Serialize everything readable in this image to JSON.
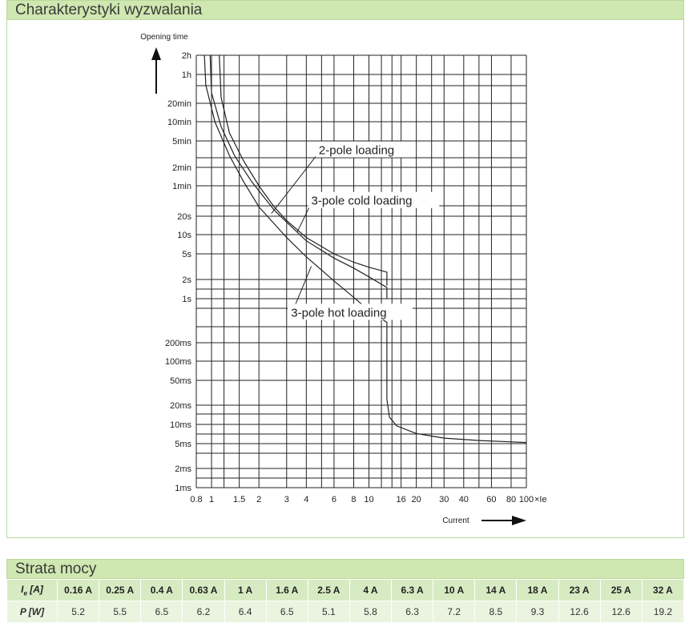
{
  "header1": {
    "title": "Charakterystyki wyzwalania"
  },
  "header2": {
    "title": "Strata mocy"
  },
  "chart_data": {
    "type": "line",
    "title": "",
    "xlabel": "Current",
    "ylabel": "Opening time",
    "x_unit": "×Ie",
    "x_scale": "log",
    "y_scale": "log",
    "xlim": [
      0.8,
      100
    ],
    "ylim_seconds": [
      0.001,
      7200
    ],
    "x_ticks": [
      {
        "v": 0.8,
        "label": "0.8"
      },
      {
        "v": 1,
        "label": "1"
      },
      {
        "v": 1.5,
        "label": "1.5"
      },
      {
        "v": 2,
        "label": "2"
      },
      {
        "v": 3,
        "label": "3"
      },
      {
        "v": 4,
        "label": "4"
      },
      {
        "v": 6,
        "label": "6"
      },
      {
        "v": 8,
        "label": "8"
      },
      {
        "v": 10,
        "label": "10"
      },
      {
        "v": 16,
        "label": "16"
      },
      {
        "v": 20,
        "label": "20"
      },
      {
        "v": 30,
        "label": "30"
      },
      {
        "v": 40,
        "label": "40"
      },
      {
        "v": 60,
        "label": "60"
      },
      {
        "v": 80,
        "label": "80"
      },
      {
        "v": 100,
        "label": "100"
      }
    ],
    "x_grid": [
      0.8,
      1,
      1.2,
      1.5,
      2,
      3,
      4,
      5,
      6,
      8,
      10,
      12,
      14,
      16,
      20,
      25,
      30,
      40,
      50,
      60,
      80,
      100
    ],
    "y_ticks": [
      {
        "s": 7200,
        "label": "2h"
      },
      {
        "s": 3600,
        "label": "1h"
      },
      {
        "s": 1200,
        "label": "20min"
      },
      {
        "s": 600,
        "label": "10min"
      },
      {
        "s": 300,
        "label": "5min"
      },
      {
        "s": 120,
        "label": "2min"
      },
      {
        "s": 60,
        "label": "1min"
      },
      {
        "s": 20,
        "label": "20s"
      },
      {
        "s": 10,
        "label": "10s"
      },
      {
        "s": 5,
        "label": "5s"
      },
      {
        "s": 2,
        "label": "2s"
      },
      {
        "s": 1,
        "label": "1s"
      },
      {
        "s": 0.2,
        "label": "200ms"
      },
      {
        "s": 0.1,
        "label": "100ms"
      },
      {
        "s": 0.05,
        "label": "50ms"
      },
      {
        "s": 0.02,
        "label": "20ms"
      },
      {
        "s": 0.01,
        "label": "10ms"
      },
      {
        "s": 0.005,
        "label": "5ms"
      },
      {
        "s": 0.002,
        "label": "2ms"
      },
      {
        "s": 0.001,
        "label": "1ms"
      }
    ],
    "series": [
      {
        "name": "2-pole loading",
        "points": [
          [
            1.12,
            7200
          ],
          [
            1.15,
            1500
          ],
          [
            1.3,
            400
          ],
          [
            1.6,
            150
          ],
          [
            2,
            60
          ],
          [
            2.5,
            28
          ],
          [
            3,
            17
          ],
          [
            4,
            9
          ],
          [
            6,
            5
          ],
          [
            8,
            3.7
          ],
          [
            10,
            3.1
          ],
          [
            13,
            2.6
          ],
          [
            13,
            1.6
          ]
        ]
      },
      {
        "name": "3-pole cold loading",
        "points": [
          [
            0.98,
            7200
          ],
          [
            1.0,
            1800
          ],
          [
            1.15,
            500
          ],
          [
            1.4,
            180
          ],
          [
            1.8,
            70
          ],
          [
            2.5,
            25
          ],
          [
            3,
            16
          ],
          [
            4,
            8
          ],
          [
            6,
            4.3
          ],
          [
            8,
            3
          ],
          [
            10,
            2.2
          ],
          [
            13,
            1.5
          ],
          [
            13,
            1.0
          ]
        ]
      },
      {
        "name": "3-pole hot loading",
        "points": [
          [
            0.9,
            7200
          ],
          [
            0.92,
            2400
          ],
          [
            1.05,
            600
          ],
          [
            1.3,
            180
          ],
          [
            1.6,
            70
          ],
          [
            2,
            28
          ],
          [
            3,
            9
          ],
          [
            4,
            4.5
          ],
          [
            6,
            1.9
          ],
          [
            8,
            1.05
          ],
          [
            10,
            0.65
          ],
          [
            13,
            0.42
          ],
          [
            13,
            0.025
          ],
          [
            13.5,
            0.013
          ],
          [
            15,
            0.0095
          ],
          [
            20,
            0.0072
          ],
          [
            30,
            0.0061
          ],
          [
            50,
            0.0056
          ],
          [
            100,
            0.0052
          ]
        ]
      }
    ],
    "annotations": [
      {
        "text": "2-pole loading",
        "anchor_x": 2.4,
        "anchor_y": 22,
        "text_x": 4.8,
        "text_y": 200
      },
      {
        "text": "3-pole cold loading",
        "anchor_x": 3.5,
        "anchor_y": 11,
        "text_x": 4.3,
        "text_y": 32
      },
      {
        "text": "3-pole hot loading",
        "anchor_x": 4.3,
        "anchor_y": 3.2,
        "text_x": 3.2,
        "text_y": 0.55
      }
    ]
  },
  "table": {
    "row1": {
      "label": "Iₑ [A]",
      "label_main": "I",
      "label_sub": "e",
      "label_unit": " [A]",
      "values": [
        "0.16 A",
        "0.25 A",
        "0.4 A",
        "0.63 A",
        "1 A",
        "1.6 A",
        "2.5 A",
        "4 A",
        "6.3 A",
        "10 A",
        "14 A",
        "18 A",
        "23 A",
        "25 A",
        "32 A"
      ]
    },
    "row2": {
      "label": "P [W]",
      "values": [
        "5.2",
        "5.5",
        "6.5",
        "6.2",
        "6.4",
        "6.5",
        "5.1",
        "5.8",
        "6.3",
        "7.2",
        "8.5",
        "9.3",
        "12.6",
        "12.6",
        "19.2"
      ]
    }
  },
  "colors": {
    "header_bg": "#cfe7b0",
    "row1_bg": "#d7ebc2",
    "row2_bg": "#eaf4df",
    "line": "#222222"
  }
}
